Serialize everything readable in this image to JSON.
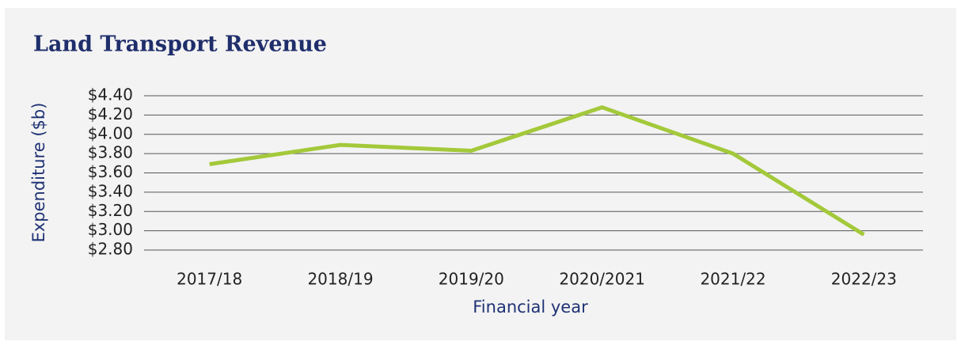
{
  "chart_data": {
    "type": "line",
    "title": "Land Transport Revenue",
    "y_label": "Expenditure ($b)",
    "x_label": "Financial year",
    "categories": [
      "2017/18",
      "2018/19",
      "2019/20",
      "2020/2021",
      "2021/22",
      "2022/23"
    ],
    "series": [
      {
        "name": "Land Transport Revenue",
        "color": "#a3c93a",
        "values": [
          3.69,
          3.89,
          3.83,
          4.28,
          3.8,
          2.96
        ]
      }
    ],
    "ylim": [
      2.8,
      4.4
    ],
    "yticks": [
      {
        "value": 2.8,
        "label": "$2.80"
      },
      {
        "value": 3.0,
        "label": "$3.00"
      },
      {
        "value": 3.2,
        "label": "$3.20"
      },
      {
        "value": 3.4,
        "label": "$3.40"
      },
      {
        "value": 3.6,
        "label": "$3.60"
      },
      {
        "value": 3.8,
        "label": "$3.80"
      },
      {
        "value": 4.0,
        "label": "$4.00"
      },
      {
        "value": 4.2,
        "label": "$4.20"
      },
      {
        "value": 4.4,
        "label": "$4.40"
      }
    ],
    "grid": true
  }
}
